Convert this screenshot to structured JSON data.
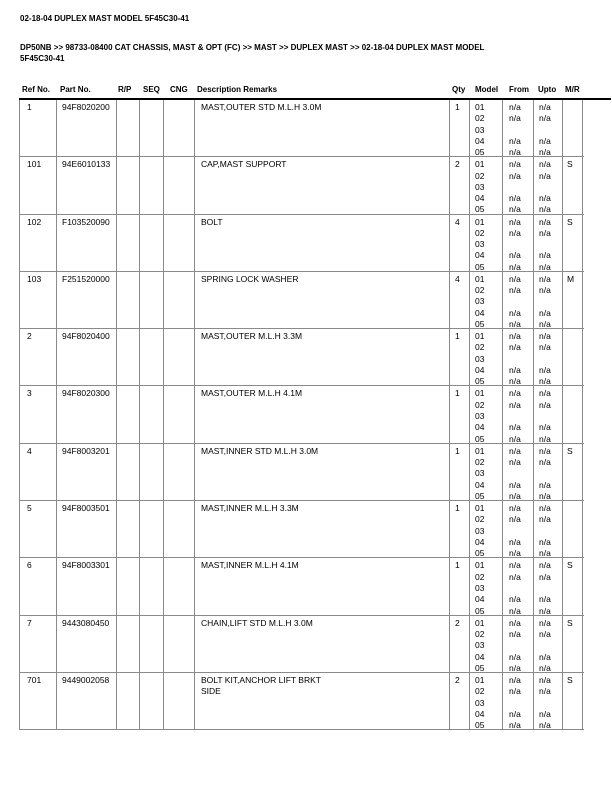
{
  "page": {
    "title": "02-18-04 DUPLEX MAST MODEL 5F45C30-41",
    "breadcrumb_lines": [
      "DP50NB >> 98733-08400 CAT CHASSIS, MAST & OPT (FC) >> MAST >> DUPLEX MAST >> 02-18-04 DUPLEX MAST MODEL",
      "5F45C30-41"
    ]
  },
  "table": {
    "columns": [
      "Ref No.",
      "Part No.",
      "R/P",
      "SEQ",
      "CNG",
      "Description Remarks",
      "Qty",
      "Model",
      "From",
      "Upto",
      "M/R"
    ],
    "rows": [
      {
        "ref": "1",
        "part": "94F8020200",
        "rp": "",
        "seq": "",
        "cng": "",
        "desc_lines": [
          "MAST,OUTER STD M.L.H 3.0M"
        ],
        "qty": "1",
        "mr": "",
        "models": [
          [
            "01",
            "n/a",
            "n/a"
          ],
          [
            "02",
            "n/a",
            "n/a"
          ],
          [
            "03",
            "",
            ""
          ],
          [
            "04",
            "n/a",
            "n/a"
          ],
          [
            "05",
            "n/a",
            "n/a"
          ]
        ]
      },
      {
        "ref": "101",
        "part": "94E6010133",
        "rp": "",
        "seq": "",
        "cng": "",
        "desc_lines": [
          "CAP,MAST SUPPORT"
        ],
        "qty": "2",
        "mr": "S",
        "models": [
          [
            "01",
            "n/a",
            "n/a"
          ],
          [
            "02",
            "n/a",
            "n/a"
          ],
          [
            "03",
            "",
            ""
          ],
          [
            "04",
            "n/a",
            "n/a"
          ],
          [
            "05",
            "n/a",
            "n/a"
          ]
        ]
      },
      {
        "ref": "102",
        "part": "F103520090",
        "rp": "",
        "seq": "",
        "cng": "",
        "desc_lines": [
          "BOLT"
        ],
        "qty": "4",
        "mr": "S",
        "models": [
          [
            "01",
            "n/a",
            "n/a"
          ],
          [
            "02",
            "n/a",
            "n/a"
          ],
          [
            "03",
            "",
            ""
          ],
          [
            "04",
            "n/a",
            "n/a"
          ],
          [
            "05",
            "n/a",
            "n/a"
          ]
        ]
      },
      {
        "ref": "103",
        "part": "F251520000",
        "rp": "",
        "seq": "",
        "cng": "",
        "desc_lines": [
          "SPRING LOCK WASHER"
        ],
        "qty": "4",
        "mr": "M",
        "models": [
          [
            "01",
            "n/a",
            "n/a"
          ],
          [
            "02",
            "n/a",
            "n/a"
          ],
          [
            "03",
            "",
            ""
          ],
          [
            "04",
            "n/a",
            "n/a"
          ],
          [
            "05",
            "n/a",
            "n/a"
          ]
        ]
      },
      {
        "ref": "2",
        "part": "94F8020400",
        "rp": "",
        "seq": "",
        "cng": "",
        "desc_lines": [
          "MAST,OUTER M.L.H 3.3M"
        ],
        "qty": "1",
        "mr": "",
        "models": [
          [
            "01",
            "n/a",
            "n/a"
          ],
          [
            "02",
            "n/a",
            "n/a"
          ],
          [
            "03",
            "",
            ""
          ],
          [
            "04",
            "n/a",
            "n/a"
          ],
          [
            "05",
            "n/a",
            "n/a"
          ]
        ]
      },
      {
        "ref": "3",
        "part": "94F8020300",
        "rp": "",
        "seq": "",
        "cng": "",
        "desc_lines": [
          "MAST,OUTER M.L.H 4.1M"
        ],
        "qty": "1",
        "mr": "",
        "models": [
          [
            "01",
            "n/a",
            "n/a"
          ],
          [
            "02",
            "n/a",
            "n/a"
          ],
          [
            "03",
            "",
            ""
          ],
          [
            "04",
            "n/a",
            "n/a"
          ],
          [
            "05",
            "n/a",
            "n/a"
          ]
        ]
      },
      {
        "ref": "4",
        "part": "94F8003201",
        "rp": "",
        "seq": "",
        "cng": "",
        "desc_lines": [
          "MAST,INNER STD M.L.H 3.0M"
        ],
        "qty": "1",
        "mr": "S",
        "models": [
          [
            "01",
            "n/a",
            "n/a"
          ],
          [
            "02",
            "n/a",
            "n/a"
          ],
          [
            "03",
            "",
            ""
          ],
          [
            "04",
            "n/a",
            "n/a"
          ],
          [
            "05",
            "n/a",
            "n/a"
          ]
        ]
      },
      {
        "ref": "5",
        "part": "94F8003501",
        "rp": "",
        "seq": "",
        "cng": "",
        "desc_lines": [
          "MAST,INNER M.L.H 3.3M"
        ],
        "qty": "1",
        "mr": "",
        "models": [
          [
            "01",
            "n/a",
            "n/a"
          ],
          [
            "02",
            "n/a",
            "n/a"
          ],
          [
            "03",
            "",
            ""
          ],
          [
            "04",
            "n/a",
            "n/a"
          ],
          [
            "05",
            "n/a",
            "n/a"
          ]
        ]
      },
      {
        "ref": "6",
        "part": "94F8003301",
        "rp": "",
        "seq": "",
        "cng": "",
        "desc_lines": [
          "MAST,INNER M.L.H 4.1M"
        ],
        "qty": "1",
        "mr": "S",
        "models": [
          [
            "01",
            "n/a",
            "n/a"
          ],
          [
            "02",
            "n/a",
            "n/a"
          ],
          [
            "03",
            "",
            ""
          ],
          [
            "04",
            "n/a",
            "n/a"
          ],
          [
            "05",
            "n/a",
            "n/a"
          ]
        ]
      },
      {
        "ref": "7",
        "part": "9443080450",
        "rp": "",
        "seq": "",
        "cng": "",
        "desc_lines": [
          "CHAIN,LIFT STD M.L.H 3.0M"
        ],
        "qty": "2",
        "mr": "S",
        "models": [
          [
            "01",
            "n/a",
            "n/a"
          ],
          [
            "02",
            "n/a",
            "n/a"
          ],
          [
            "03",
            "",
            ""
          ],
          [
            "04",
            "n/a",
            "n/a"
          ],
          [
            "05",
            "n/a",
            "n/a"
          ]
        ]
      },
      {
        "ref": "701",
        "part": "9449002058",
        "rp": "",
        "seq": "",
        "cng": "",
        "desc_lines": [
          "BOLT KIT,ANCHOR LIFT BRKT",
          "SIDE"
        ],
        "qty": "2",
        "mr": "S",
        "models": [
          [
            "01",
            "n/a",
            "n/a"
          ],
          [
            "02",
            "n/a",
            "n/a"
          ],
          [
            "03",
            "",
            ""
          ],
          [
            "04",
            "n/a",
            "n/a"
          ],
          [
            "05",
            "n/a",
            "n/a"
          ]
        ]
      }
    ]
  }
}
